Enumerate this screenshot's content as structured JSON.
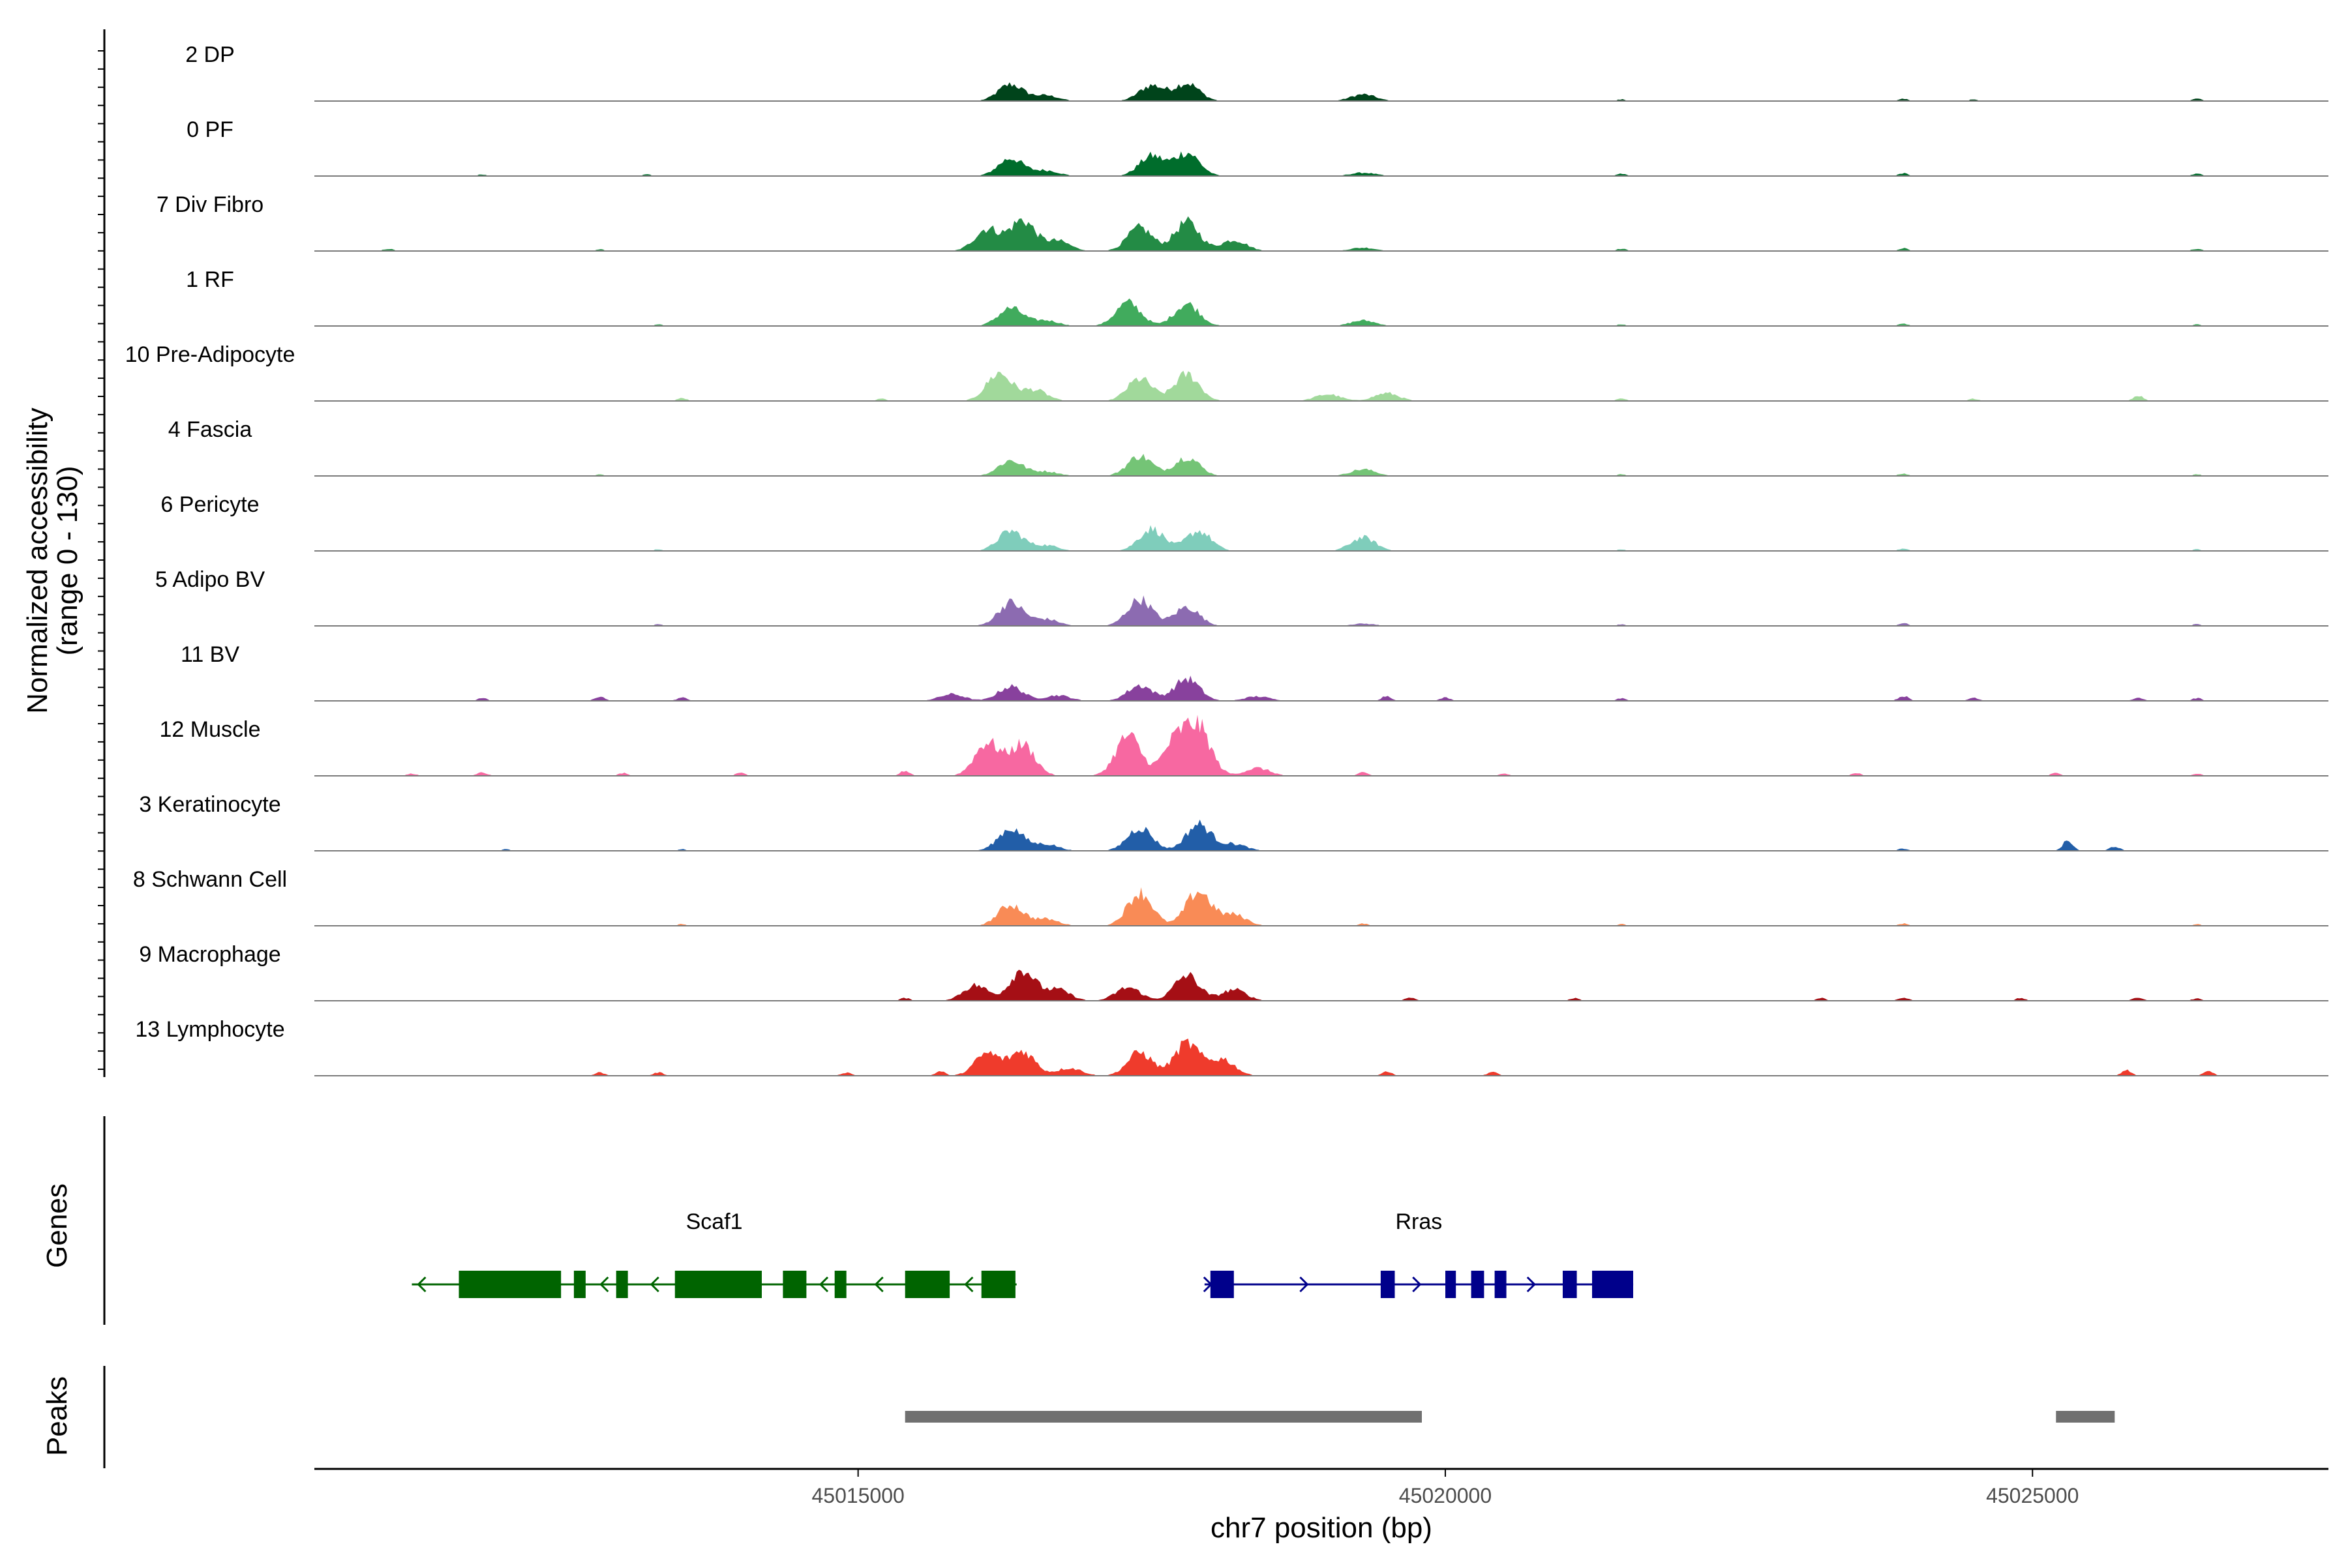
{
  "chart_data": {
    "type": "area",
    "panel_ylabel": "Normalized accessibility\n(range 0 - 130)",
    "y_range": [
      0,
      130
    ],
    "xlabel": "chr7 position (bp)",
    "xlim": [
      45010370,
      45027520
    ],
    "x_ticks": [
      45015000,
      45020000,
      45025000
    ],
    "x_tick_labels": [
      "45015000",
      "45020000",
      "45025000"
    ],
    "tracks": [
      {
        "name": "2 DP",
        "color": "#00441B",
        "peaks": [
          [
            45016300,
            30
          ],
          [
            45016600,
            10
          ],
          [
            45017500,
            28
          ],
          [
            45017800,
            32
          ],
          [
            45019300,
            12
          ]
        ],
        "bumps": [
          [
            45021500,
            3
          ],
          [
            45023900,
            4
          ],
          [
            45024500,
            3
          ],
          [
            45026400,
            4
          ]
        ]
      },
      {
        "name": "0 PF",
        "color": "#006D2C",
        "peaks": [
          [
            45016300,
            32
          ],
          [
            45016600,
            10
          ],
          [
            45017500,
            36
          ],
          [
            45017800,
            42
          ],
          [
            45019300,
            6
          ]
        ],
        "bumps": [
          [
            45011800,
            3
          ],
          [
            45013200,
            3
          ],
          [
            45021500,
            4
          ],
          [
            45023900,
            5
          ],
          [
            45026400,
            4
          ]
        ]
      },
      {
        "name": "7 Div Fibro",
        "color": "#238B45",
        "peaks": [
          [
            45016100,
            40
          ],
          [
            45016400,
            55
          ],
          [
            45016700,
            18
          ],
          [
            45017400,
            42
          ],
          [
            45017800,
            52
          ],
          [
            45018200,
            20
          ],
          [
            45019300,
            6
          ]
        ],
        "bumps": [
          [
            45011000,
            4
          ],
          [
            45012800,
            3
          ],
          [
            45021500,
            4
          ],
          [
            45023900,
            5
          ],
          [
            45026400,
            4
          ]
        ]
      },
      {
        "name": "1 RF",
        "color": "#41AB5D",
        "peaks": [
          [
            45016300,
            32
          ],
          [
            45016600,
            10
          ],
          [
            45017300,
            42
          ],
          [
            45017800,
            40
          ],
          [
            45019300,
            10
          ]
        ],
        "bumps": [
          [
            45013300,
            3
          ],
          [
            45021500,
            3
          ],
          [
            45023900,
            4
          ],
          [
            45026400,
            3
          ]
        ]
      },
      {
        "name": "10 Pre-Adipocyte",
        "color": "#A1D99B",
        "peaks": [
          [
            45016200,
            50
          ],
          [
            45016500,
            20
          ],
          [
            45017400,
            40
          ],
          [
            45017800,
            48
          ],
          [
            45019000,
            12
          ],
          [
            45019500,
            14
          ]
        ],
        "bumps": [
          [
            45013500,
            5
          ],
          [
            45015200,
            4
          ],
          [
            45021500,
            4
          ],
          [
            45024500,
            4
          ],
          [
            45025900,
            10
          ]
        ]
      },
      {
        "name": "4 Fascia",
        "color": "#74C476",
        "peaks": [
          [
            45016300,
            28
          ],
          [
            45016600,
            8
          ],
          [
            45017400,
            36
          ],
          [
            45017800,
            34
          ],
          [
            45019300,
            12
          ]
        ],
        "bumps": [
          [
            45012800,
            3
          ],
          [
            45021500,
            3
          ],
          [
            45023900,
            4
          ],
          [
            45026400,
            3
          ]
        ]
      },
      {
        "name": "6 Pericyte",
        "color": "#7FCDBB",
        "peaks": [
          [
            45016300,
            36
          ],
          [
            45016600,
            10
          ],
          [
            45017500,
            40
          ],
          [
            45017900,
            36
          ],
          [
            45019300,
            24
          ]
        ],
        "bumps": [
          [
            45013300,
            3
          ],
          [
            45021500,
            3
          ],
          [
            45023900,
            4
          ],
          [
            45026400,
            3
          ]
        ]
      },
      {
        "name": "5 Adipo BV",
        "color": "#8C6BB1",
        "peaks": [
          [
            45016300,
            42
          ],
          [
            45016600,
            12
          ],
          [
            45017400,
            48
          ],
          [
            45017800,
            34
          ],
          [
            45019300,
            4
          ]
        ],
        "bumps": [
          [
            45013300,
            3
          ],
          [
            45021500,
            3
          ],
          [
            45023900,
            5
          ],
          [
            45026400,
            3
          ]
        ]
      },
      {
        "name": "11 BV",
        "color": "#88419D",
        "peaks": [
          [
            45015800,
            12
          ],
          [
            45016300,
            26
          ],
          [
            45016700,
            10
          ],
          [
            45017400,
            28
          ],
          [
            45017800,
            40
          ],
          [
            45018400,
            8
          ]
        ],
        "bumps": [
          [
            45011800,
            5
          ],
          [
            45012800,
            8
          ],
          [
            45013500,
            6
          ],
          [
            45019500,
            9
          ],
          [
            45020000,
            6
          ],
          [
            45021500,
            5
          ],
          [
            45023900,
            9
          ],
          [
            45024500,
            6
          ],
          [
            45025900,
            6
          ],
          [
            45026400,
            5
          ]
        ]
      },
      {
        "name": "12 Muscle",
        "color": "#F768A1",
        "peaks": [
          [
            45016100,
            60
          ],
          [
            45016400,
            56
          ],
          [
            45017300,
            72
          ],
          [
            45017700,
            60
          ],
          [
            45017900,
            82
          ],
          [
            45018400,
            14
          ]
        ],
        "bumps": [
          [
            45011200,
            4
          ],
          [
            45011800,
            6
          ],
          [
            45013000,
            5
          ],
          [
            45014000,
            5
          ],
          [
            45015400,
            9
          ],
          [
            45019300,
            6
          ],
          [
            45020500,
            4
          ],
          [
            45023500,
            5
          ],
          [
            45025200,
            5
          ],
          [
            45026400,
            4
          ]
        ]
      },
      {
        "name": "3 Keratinocyte",
        "color": "#225EA8",
        "peaks": [
          [
            45016300,
            40
          ],
          [
            45016600,
            12
          ],
          [
            45017400,
            42
          ],
          [
            45017900,
            48
          ],
          [
            45018200,
            12
          ]
        ],
        "bumps": [
          [
            45012000,
            3
          ],
          [
            45013500,
            3
          ],
          [
            45023900,
            4
          ],
          [
            45025300,
            18
          ],
          [
            45025700,
            8
          ]
        ]
      },
      {
        "name": "8 Schwann Cell",
        "color": "#F98B56",
        "peaks": [
          [
            45016300,
            38
          ],
          [
            45016600,
            12
          ],
          [
            45017400,
            60
          ],
          [
            45017900,
            62
          ],
          [
            45018200,
            20
          ]
        ],
        "bumps": [
          [
            45013500,
            3
          ],
          [
            45019300,
            4
          ],
          [
            45021500,
            3
          ],
          [
            45023900,
            4
          ],
          [
            45026400,
            3
          ]
        ]
      },
      {
        "name": "9 Macrophage",
        "color": "#A50F15",
        "peaks": [
          [
            45016000,
            28
          ],
          [
            45016400,
            56
          ],
          [
            45016700,
            20
          ],
          [
            45017300,
            24
          ],
          [
            45017800,
            46
          ],
          [
            45018200,
            20
          ]
        ],
        "bumps": [
          [
            45015400,
            5
          ],
          [
            45019700,
            6
          ],
          [
            45021100,
            5
          ],
          [
            45023200,
            5
          ],
          [
            45023900,
            6
          ],
          [
            45024900,
            5
          ],
          [
            45025900,
            6
          ],
          [
            45026400,
            4
          ]
        ]
      },
      {
        "name": "13 Lymphocyte",
        "color": "#EF3B2C",
        "peaks": [
          [
            45016100,
            40
          ],
          [
            45016400,
            44
          ],
          [
            45016800,
            14
          ],
          [
            45017400,
            42
          ],
          [
            45017800,
            58
          ],
          [
            45018100,
            30
          ]
        ],
        "bumps": [
          [
            45012800,
            6
          ],
          [
            45013300,
            6
          ],
          [
            45014900,
            6
          ],
          [
            45015700,
            8
          ],
          [
            45019500,
            8
          ],
          [
            45020400,
            7
          ],
          [
            45025800,
            10
          ],
          [
            45026500,
            8
          ]
        ]
      }
    ],
    "genes_label": "Genes",
    "genes": [
      {
        "name": "Scaf1",
        "strand": "-",
        "color": "#006400",
        "start": 45011200,
        "end": 45016350,
        "exons": [
          [
            45011600,
            45012470
          ],
          [
            45012580,
            45012680
          ],
          [
            45012940,
            45013040
          ],
          [
            45013440,
            45014180
          ],
          [
            45014360,
            45014560
          ],
          [
            45014800,
            45014900
          ],
          [
            45015400,
            45015780
          ],
          [
            45016050,
            45016340
          ]
        ]
      },
      {
        "name": "Rras",
        "strand": "+",
        "color": "#00008B",
        "start": 45017950,
        "end": 45021600,
        "exons": [
          [
            45018000,
            45018200
          ],
          [
            45019450,
            45019570
          ],
          [
            45020000,
            45020090
          ],
          [
            45020220,
            45020330
          ],
          [
            45020420,
            45020520
          ],
          [
            45021000,
            45021120
          ],
          [
            45021250,
            45021600
          ]
        ]
      }
    ],
    "peaks_label": "Peaks",
    "peak_regions": [
      [
        45015400,
        45019800
      ],
      [
        45025200,
        45025700
      ]
    ]
  }
}
